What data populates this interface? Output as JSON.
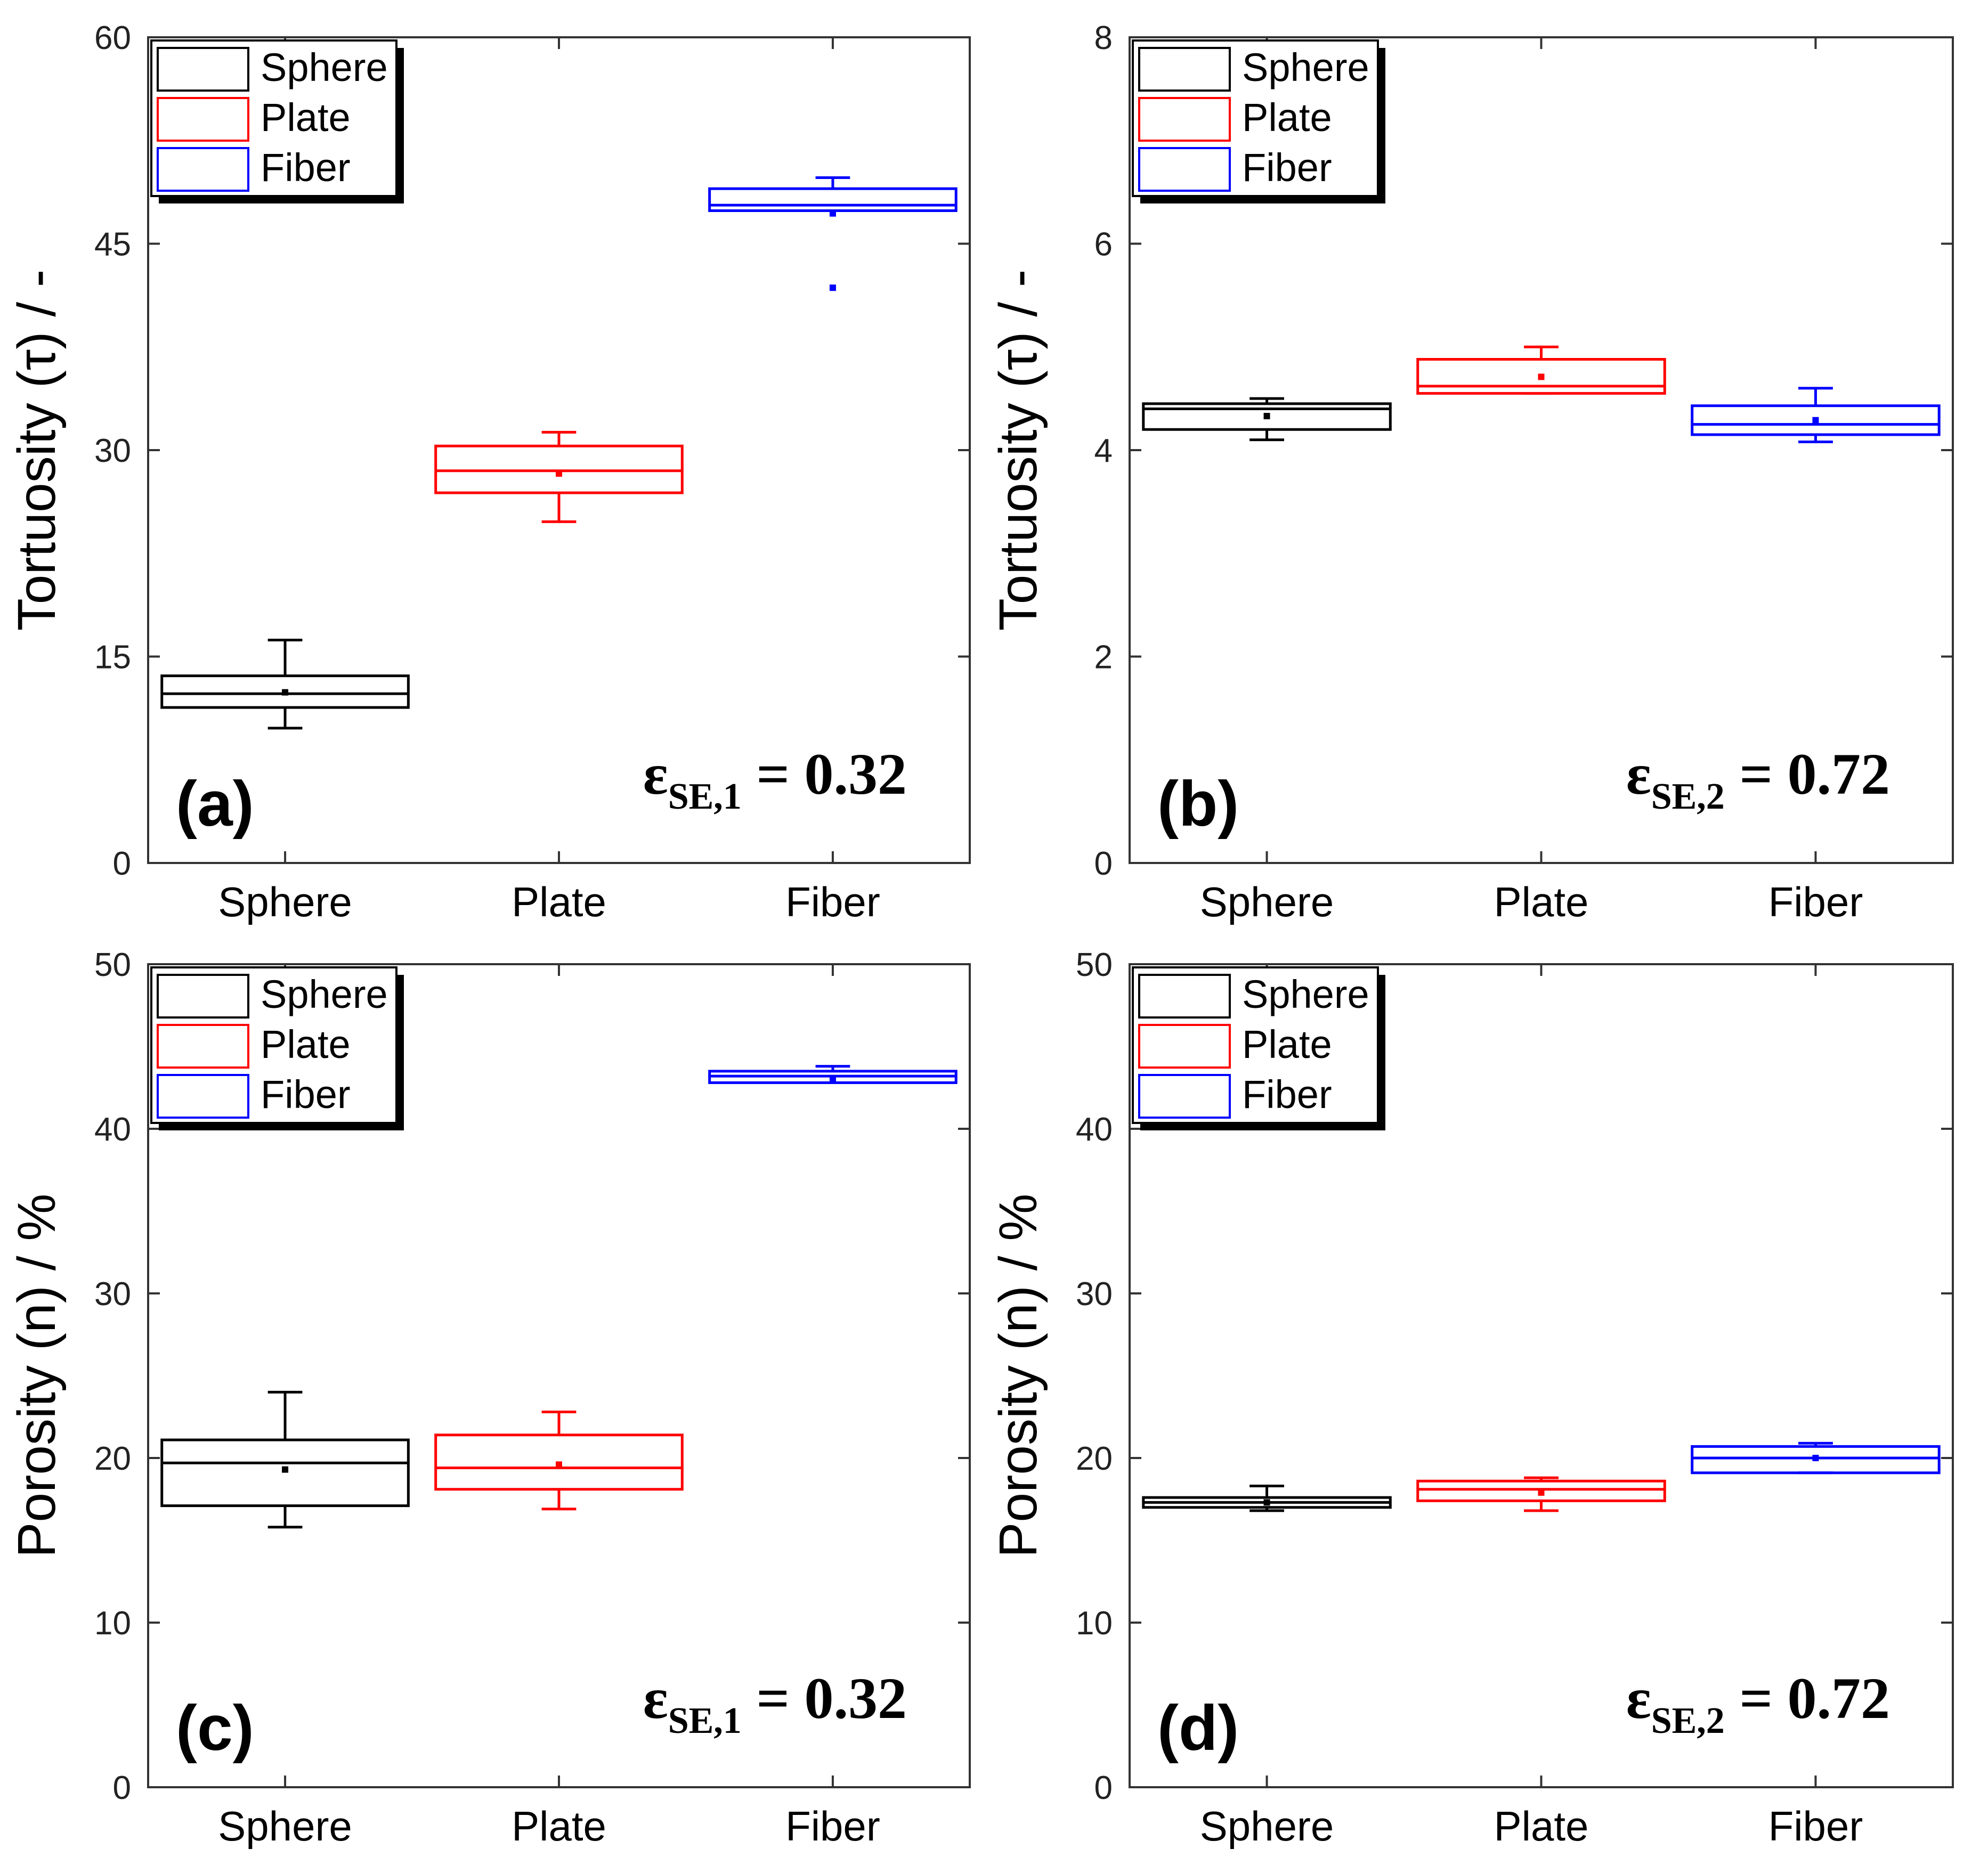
{
  "figure": {
    "background": "#ffffff",
    "axis_color": "#333333"
  },
  "legend_items": [
    {
      "label": "Sphere",
      "color": "#000000"
    },
    {
      "label": "Plate",
      "color": "#ff0000"
    },
    {
      "label": "Fiber",
      "color": "#0000ff"
    }
  ],
  "chart_data": [
    {
      "panel": "(a)",
      "type": "box",
      "ylabel": "Tortuosity (τ) / -",
      "ylim": [
        0,
        60
      ],
      "yticks": [
        0,
        15,
        30,
        45,
        60
      ],
      "categories": [
        "Sphere",
        "Plate",
        "Fiber"
      ],
      "annotation": {
        "symbol": "ε",
        "sub": "SE,1",
        "value": " = 0.32"
      },
      "legend_position": "top-left",
      "series": [
        {
          "name": "Sphere",
          "color": "#000000",
          "whisker_low": 9.8,
          "q1": 11.3,
          "median": 12.3,
          "q3": 13.6,
          "whisker_high": 16.2,
          "mean": 12.4,
          "outliers": []
        },
        {
          "name": "Plate",
          "color": "#ff0000",
          "whisker_low": 24.8,
          "q1": 26.9,
          "median": 28.5,
          "q3": 30.3,
          "whisker_high": 31.3,
          "mean": 28.3,
          "outliers": []
        },
        {
          "name": "Fiber",
          "color": "#0000ff",
          "whisker_low": 47.4,
          "q1": 47.4,
          "median": 47.8,
          "q3": 49.0,
          "whisker_high": 49.8,
          "mean": 47.2,
          "outliers": [
            41.8
          ]
        }
      ]
    },
    {
      "panel": "(b)",
      "type": "box",
      "ylabel": "Tortuosity (τ) / -",
      "ylim": [
        0,
        8
      ],
      "yticks": [
        0,
        2,
        4,
        6,
        8
      ],
      "categories": [
        "Sphere",
        "Plate",
        "Fiber"
      ],
      "annotation": {
        "symbol": "ε",
        "sub": "SE,2",
        "value": " = 0.72"
      },
      "legend_position": "top-left",
      "series": [
        {
          "name": "Sphere",
          "color": "#000000",
          "whisker_low": 4.1,
          "q1": 4.2,
          "median": 4.4,
          "q3": 4.45,
          "whisker_high": 4.5,
          "mean": 4.33,
          "outliers": []
        },
        {
          "name": "Plate",
          "color": "#ff0000",
          "whisker_low": 4.55,
          "q1": 4.55,
          "median": 4.62,
          "q3": 4.88,
          "whisker_high": 5.0,
          "mean": 4.71,
          "outliers": []
        },
        {
          "name": "Fiber",
          "color": "#0000ff",
          "whisker_low": 4.08,
          "q1": 4.15,
          "median": 4.25,
          "q3": 4.43,
          "whisker_high": 4.6,
          "mean": 4.29,
          "outliers": []
        }
      ]
    },
    {
      "panel": "(c)",
      "type": "box",
      "ylabel": "Porosity (n) / %",
      "ylim": [
        0,
        50
      ],
      "yticks": [
        0,
        10,
        20,
        30,
        40,
        50
      ],
      "categories": [
        "Sphere",
        "Plate",
        "Fiber"
      ],
      "annotation": {
        "symbol": "ε",
        "sub": "SE,1",
        "value": " = 0.32"
      },
      "legend_position": "top-left",
      "series": [
        {
          "name": "Sphere",
          "color": "#000000",
          "whisker_low": 15.8,
          "q1": 17.1,
          "median": 19.7,
          "q3": 21.1,
          "whisker_high": 24.0,
          "mean": 19.3,
          "outliers": []
        },
        {
          "name": "Plate",
          "color": "#ff0000",
          "whisker_low": 16.9,
          "q1": 18.1,
          "median": 19.4,
          "q3": 21.4,
          "whisker_high": 22.8,
          "mean": 19.6,
          "outliers": []
        },
        {
          "name": "Fiber",
          "color": "#0000ff",
          "whisker_low": 42.8,
          "q1": 42.8,
          "median": 43.2,
          "q3": 43.5,
          "whisker_high": 43.8,
          "mean": 43.0,
          "outliers": []
        }
      ]
    },
    {
      "panel": "(d)",
      "type": "box",
      "ylabel": "Porosity (n) / %",
      "ylim": [
        0,
        50
      ],
      "yticks": [
        0,
        10,
        20,
        30,
        40,
        50
      ],
      "categories": [
        "Sphere",
        "Plate",
        "Fiber"
      ],
      "annotation": {
        "symbol": "ε",
        "sub": "SE,2",
        "value": " = 0.72"
      },
      "legend_position": "top-left",
      "series": [
        {
          "name": "Sphere",
          "color": "#000000",
          "whisker_low": 16.8,
          "q1": 17.0,
          "median": 17.3,
          "q3": 17.6,
          "whisker_high": 18.3,
          "mean": 17.3,
          "outliers": []
        },
        {
          "name": "Plate",
          "color": "#ff0000",
          "whisker_low": 16.8,
          "q1": 17.4,
          "median": 18.1,
          "q3": 18.6,
          "whisker_high": 18.8,
          "mean": 17.9,
          "outliers": []
        },
        {
          "name": "Fiber",
          "color": "#0000ff",
          "whisker_low": 19.1,
          "q1": 19.1,
          "median": 20.0,
          "q3": 20.7,
          "whisker_high": 20.9,
          "mean": 20.0,
          "outliers": []
        }
      ]
    }
  ]
}
